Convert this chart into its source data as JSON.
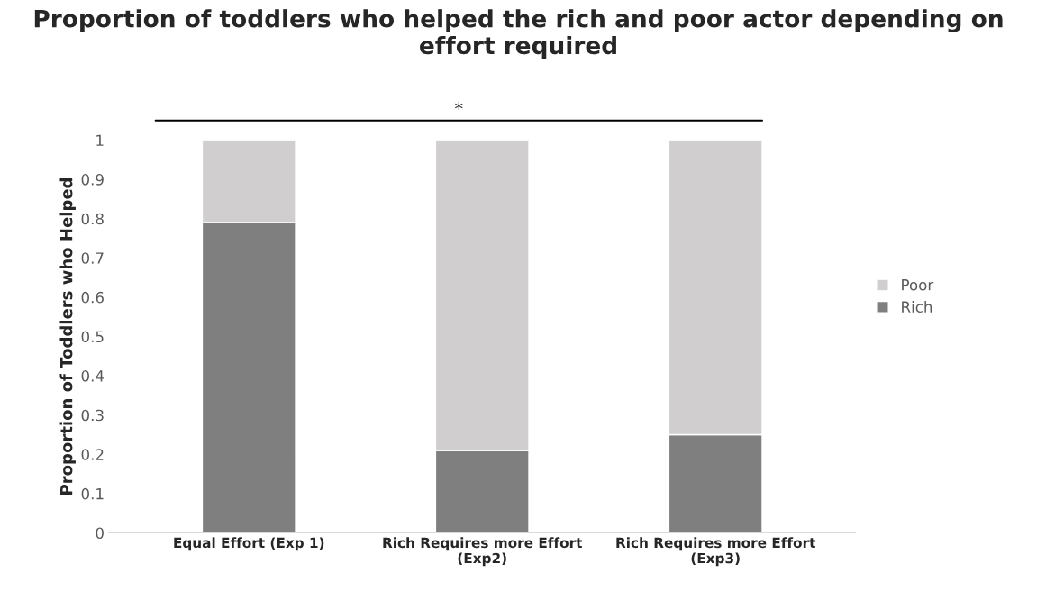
{
  "chart_data": {
    "type": "bar",
    "title": "Proportion of toddlers who helped the rich and poor actor depending on effort required",
    "ylabel": "Proportion of Toddlers who Helped",
    "categories": [
      "Equal Effort (Exp 1)",
      "Rich Requires more Effort\n(Exp2)",
      "Rich Requires more Effort\n(Exp3)"
    ],
    "stacked": true,
    "series": [
      {
        "name": "Rich",
        "color": "#7f7f7f",
        "values": [
          0.79,
          0.21,
          0.25
        ]
      },
      {
        "name": "Poor",
        "color": "#d0cece",
        "values": [
          0.21,
          0.79,
          0.75
        ]
      }
    ],
    "ylim": [
      0,
      1
    ],
    "yticks": [
      0,
      0.1,
      0.2,
      0.3,
      0.4,
      0.5,
      0.6,
      0.7,
      0.8,
      0.9,
      1
    ],
    "grid": false,
    "legend": "right",
    "annotations": [
      "*"
    ]
  }
}
